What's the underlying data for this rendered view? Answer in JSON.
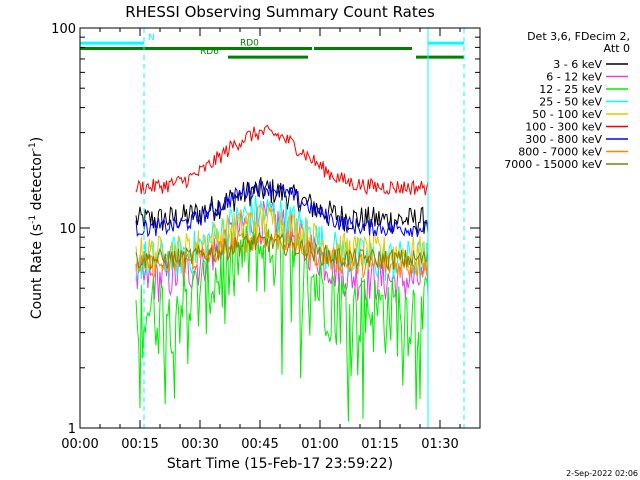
{
  "chart_data": {
    "type": "line",
    "title": "RHESSI Observing Summary Count Rates",
    "xlabel": "Start Time (15-Feb-17 23:59:22)",
    "ylabel_main": "Count Rate (s",
    "ylabel_sup1": "-1",
    "ylabel_mid": " detector",
    "ylabel_sup2": "-1",
    "ylabel_end": ")",
    "yscale": "log",
    "ylim": [
      1,
      100
    ],
    "xlim_minutes": [
      0,
      100
    ],
    "x_ticks": [
      {
        "value": 0,
        "label": "00:00"
      },
      {
        "value": 15,
        "label": "00:15"
      },
      {
        "value": 30,
        "label": "00:30"
      },
      {
        "value": 45,
        "label": "00:45"
      },
      {
        "value": 60,
        "label": "01:00"
      },
      {
        "value": 75,
        "label": "01:15"
      },
      {
        "value": 90,
        "label": "01:30"
      }
    ],
    "y_ticks": [
      {
        "value": 1,
        "label": "1"
      },
      {
        "value": 10,
        "label": "10"
      },
      {
        "value": 100,
        "label": "100"
      }
    ],
    "legend_header": [
      "Det 3,6, FDecim 2,",
      "Att 0"
    ],
    "legend_position": "right",
    "data_start_minutes": 14,
    "data_end_minutes": 87,
    "series": [
      {
        "name": "3 - 6 keV",
        "color": "#000000",
        "base": 11,
        "peak": 15.5,
        "noise": 0.16,
        "drop": 0
      },
      {
        "name": "6 - 12 keV",
        "color": "#e040e0",
        "base": 5.5,
        "peak": 11,
        "noise": 0.25,
        "drop": 0
      },
      {
        "name": "12 - 25 keV",
        "color": "#00ee00",
        "base": 4,
        "peak": 8,
        "noise": 0.45,
        "drop": 0.08
      },
      {
        "name": "25 - 50 keV",
        "color": "#00ffff",
        "base": 7,
        "peak": 12,
        "noise": 0.25,
        "drop": 0
      },
      {
        "name": "50 - 100 keV",
        "color": "#e6c800",
        "base": 7.5,
        "peak": 11,
        "noise": 0.22,
        "drop": 0
      },
      {
        "name": "100 - 300 keV",
        "color": "#ff0000",
        "base": 16,
        "peak": 30,
        "noise": 0.09,
        "drop": 0
      },
      {
        "name": "300 - 800 keV",
        "color": "#0000ff",
        "base": 10,
        "peak": 16,
        "noise": 0.1,
        "drop": 0
      },
      {
        "name": "800 - 7000 keV",
        "color": "#ff8800",
        "base": 6.5,
        "peak": 9,
        "noise": 0.14,
        "drop": 0
      },
      {
        "name": "7000 - 15000 keV",
        "color": "#808000",
        "base": 7,
        "peak": 8.5,
        "noise": 0.12,
        "drop": 0
      }
    ],
    "flare_peak_minutes": 46,
    "flare_width_minutes": 13,
    "night_boundaries_minutes": [
      0,
      87
    ],
    "saa_boundaries_minutes": [
      16,
      96
    ],
    "bars": [
      {
        "label": "N",
        "color": "#00ffff",
        "segments": [
          [
            0,
            16
          ],
          [
            87,
            96
          ]
        ],
        "level": 84,
        "label_at": 17
      },
      {
        "label": "RD0",
        "color": "#008000",
        "segments": [
          [
            0,
            58
          ],
          [
            58.5,
            83
          ]
        ],
        "level": 79,
        "label_at": 40
      },
      {
        "label": "RD6",
        "color": "#008000",
        "segments": [
          [
            37,
            57
          ],
          [
            84,
            96
          ]
        ],
        "level": 71.5,
        "label_at": 30
      }
    ],
    "footer_date": "2-Sep-2022 02:06"
  }
}
